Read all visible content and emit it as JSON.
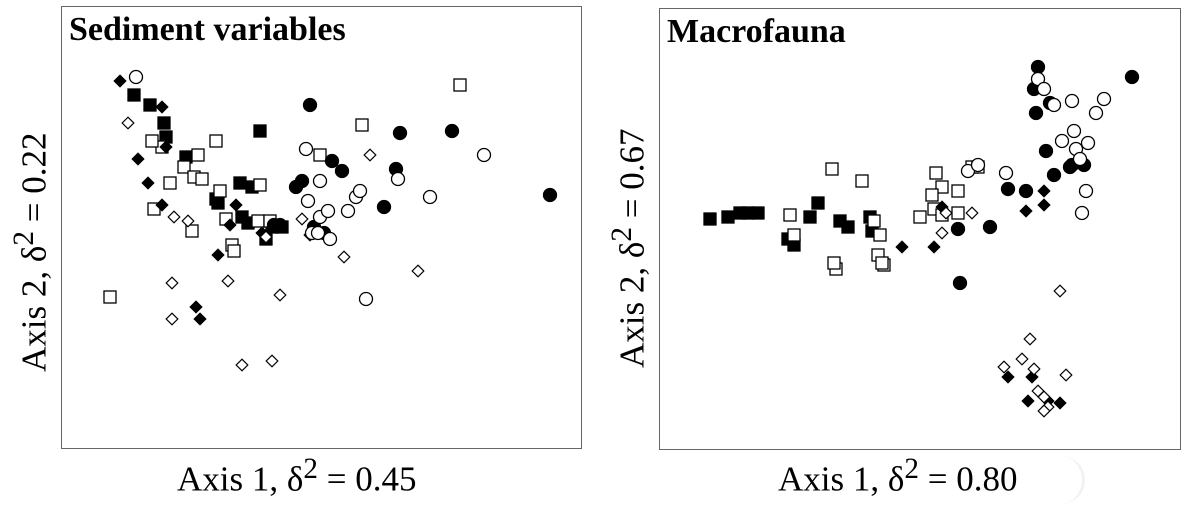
{
  "chart_data": [
    {
      "type": "scatter",
      "title": "Sediment variables",
      "xlabel_text": "Axis 1, δ",
      "xlabel_sup": "2",
      "xlabel_value": " = 0.45",
      "ylabel_text": "Axis 2, δ",
      "ylabel_sup": "2",
      "ylabel_value": " = 0.22",
      "xlim": [
        0,
        519
      ],
      "ylim": [
        0,
        441
      ],
      "axis_ticks": false,
      "grid": false,
      "series": [
        {
          "marker": "square-filled",
          "points": [
            [
              72,
              88
            ],
            [
              88,
              98
            ],
            [
              102,
              116
            ],
            [
              104,
              130
            ],
            [
              198,
              124
            ],
            [
              124,
              150
            ],
            [
              178,
              176
            ],
            [
              190,
              180
            ],
            [
              154,
              192
            ],
            [
              180,
              210
            ],
            [
              186,
              216
            ],
            [
              210,
              220
            ],
            [
              220,
              220
            ],
            [
              204,
              232
            ],
            [
              156,
              196
            ]
          ]
        },
        {
          "marker": "square-open",
          "points": [
            [
              48,
              290
            ],
            [
              100,
              140
            ],
            [
              90,
              134
            ],
            [
              154,
              134
            ],
            [
              136,
              148
            ],
            [
              122,
              160
            ],
            [
              132,
              170
            ],
            [
              108,
              176
            ],
            [
              140,
              172
            ],
            [
              158,
              184
            ],
            [
              198,
              178
            ],
            [
              92,
              202
            ],
            [
              130,
              224
            ],
            [
              164,
              212
            ],
            [
              196,
              214
            ],
            [
              208,
              214
            ],
            [
              170,
              238
            ],
            [
              172,
              244
            ],
            [
              258,
              148
            ],
            [
              300,
              118
            ],
            [
              398,
              78
            ]
          ]
        },
        {
          "marker": "diamond-filled",
          "points": [
            [
              58,
              74
            ],
            [
              100,
              100
            ],
            [
              76,
              152
            ],
            [
              86,
              176
            ],
            [
              100,
              198
            ],
            [
              104,
              140
            ],
            [
              174,
              198
            ],
            [
              156,
              248
            ],
            [
              168,
              218
            ],
            [
              200,
              226
            ],
            [
              134,
              300
            ],
            [
              138,
              312
            ]
          ]
        },
        {
          "marker": "diamond-open",
          "points": [
            [
              66,
              116
            ],
            [
              112,
              210
            ],
            [
              126,
              214
            ],
            [
              110,
              276
            ],
            [
              110,
              312
            ],
            [
              166,
              274
            ],
            [
              204,
              230
            ],
            [
              218,
              288
            ],
            [
              240,
              212
            ],
            [
              248,
              228
            ],
            [
              282,
              250
            ],
            [
              308,
              148
            ],
            [
              356,
              264
            ],
            [
              180,
              358
            ],
            [
              210,
              354
            ]
          ]
        },
        {
          "marker": "circle-filled",
          "points": [
            [
              248,
              98
            ],
            [
              338,
              126
            ],
            [
              390,
              124
            ],
            [
              240,
              174
            ],
            [
              270,
              154
            ],
            [
              280,
              164
            ],
            [
              234,
              180
            ],
            [
              212,
              218
            ],
            [
              218,
              218
            ],
            [
              252,
              220
            ],
            [
              262,
              226
            ],
            [
              322,
              200
            ],
            [
              334,
              162
            ],
            [
              488,
              188
            ]
          ]
        },
        {
          "marker": "circle-open",
          "points": [
            [
              74,
              70
            ],
            [
              244,
              142
            ],
            [
              422,
              148
            ],
            [
              258,
              174
            ],
            [
              246,
              194
            ],
            [
              258,
              210
            ],
            [
              250,
              226
            ],
            [
              256,
              226
            ],
            [
              268,
              232
            ],
            [
              266,
              204
            ],
            [
              286,
              204
            ],
            [
              294,
              190
            ],
            [
              298,
              184
            ],
            [
              336,
              172
            ],
            [
              368,
              190
            ],
            [
              304,
              292
            ]
          ]
        }
      ]
    },
    {
      "type": "scatter",
      "title": "Macrofauna",
      "xlabel_text": "Axis 1, δ",
      "xlabel_sup": "2",
      "xlabel_value": " = 0.80",
      "ylabel_text": "Axis 2, δ",
      "ylabel_sup": "2",
      "ylabel_value": " = 0.67",
      "xlim": [
        0,
        520
      ],
      "ylim": [
        0,
        440
      ],
      "axis_ticks": false,
      "grid": false,
      "series": [
        {
          "marker": "square-filled",
          "points": [
            [
              50,
              210
            ],
            [
              68,
              208
            ],
            [
              80,
              204
            ],
            [
              88,
              204
            ],
            [
              98,
              204
            ],
            [
              158,
              194
            ],
            [
              180,
              212
            ],
            [
              188,
              218
            ],
            [
              128,
              230
            ],
            [
              150,
              208
            ],
            [
              210,
              208
            ],
            [
              212,
              222
            ],
            [
              134,
              236
            ]
          ]
        },
        {
          "marker": "square-open",
          "points": [
            [
              130,
              206
            ],
            [
              134,
              226
            ],
            [
              172,
              160
            ],
            [
              202,
              172
            ],
            [
              176,
              260
            ],
            [
              218,
              246
            ],
            [
              224,
              256
            ],
            [
              214,
              212
            ],
            [
              220,
              226
            ],
            [
              260,
              208
            ],
            [
              274,
              200
            ],
            [
              282,
              178
            ],
            [
              272,
              186
            ],
            [
              276,
              164
            ],
            [
              298,
              182
            ],
            [
              282,
              206
            ],
            [
              298,
              204
            ],
            [
              312,
              158
            ],
            [
              318,
              158
            ],
            [
              222,
              254
            ],
            [
              174,
              254
            ]
          ]
        },
        {
          "marker": "diamond-filled",
          "points": [
            [
              242,
              238
            ],
            [
              274,
              238
            ],
            [
              282,
              198
            ],
            [
              366,
              202
            ],
            [
              384,
              182
            ],
            [
              384,
              196
            ],
            [
              348,
              368
            ],
            [
              372,
              368
            ],
            [
              368,
              392
            ],
            [
              388,
              392
            ],
            [
              400,
              394
            ]
          ]
        },
        {
          "marker": "diamond-open",
          "points": [
            [
              282,
              224
            ],
            [
              286,
              204
            ],
            [
              312,
              204
            ],
            [
              400,
              282
            ],
            [
              370,
              330
            ],
            [
              362,
              350
            ],
            [
              344,
              358
            ],
            [
              374,
              360
            ],
            [
              406,
              366
            ],
            [
              378,
              382
            ],
            [
              384,
              388
            ],
            [
              388,
              398
            ],
            [
              384,
              402
            ]
          ]
        },
        {
          "marker": "circle-filled",
          "points": [
            [
              378,
              58
            ],
            [
              374,
              80
            ],
            [
              376,
              104
            ],
            [
              390,
              94
            ],
            [
              410,
              158
            ],
            [
              394,
              166
            ],
            [
              412,
              156
            ],
            [
              424,
              156
            ],
            [
              386,
              142
            ],
            [
              348,
              180
            ],
            [
              366,
              182
            ],
            [
              298,
              220
            ],
            [
              330,
              218
            ],
            [
              300,
              274
            ],
            [
              472,
              68
            ]
          ]
        },
        {
          "marker": "circle-open",
          "points": [
            [
              378,
              70
            ],
            [
              384,
              80
            ],
            [
              394,
              96
            ],
            [
              412,
              92
            ],
            [
              414,
              122
            ],
            [
              402,
              132
            ],
            [
              416,
              140
            ],
            [
              420,
              150
            ],
            [
              428,
              134
            ],
            [
              436,
              104
            ],
            [
              444,
              90
            ],
            [
              426,
              182
            ],
            [
              422,
              204
            ],
            [
              308,
              162
            ],
            [
              318,
              156
            ],
            [
              346,
              164
            ]
          ]
        }
      ]
    }
  ]
}
